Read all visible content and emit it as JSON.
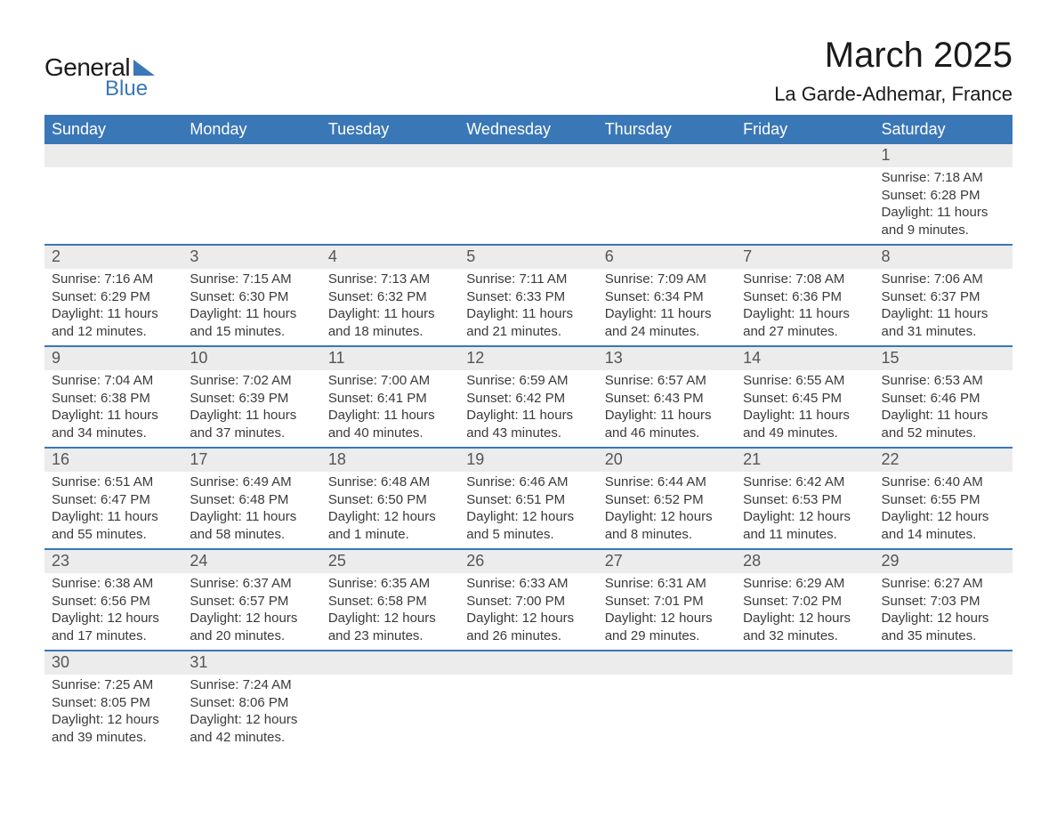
{
  "brand": {
    "general": "General",
    "blue": "Blue",
    "accent_color": "#3a77b7"
  },
  "title": {
    "month": "March 2025",
    "location": "La Garde-Adhemar, France"
  },
  "calendar": {
    "header_bg": "#3a77b7",
    "header_fg": "#ffffff",
    "band_bg": "#ececec",
    "band_fg": "#555555",
    "body_fg": "#3a3a3a",
    "row_border_color": "#3a77b7",
    "font_family": "Arial",
    "header_fontsize": 18,
    "daynum_fontsize": 18,
    "body_fontsize": 15,
    "day_headers": [
      "Sunday",
      "Monday",
      "Tuesday",
      "Wednesday",
      "Thursday",
      "Friday",
      "Saturday"
    ],
    "weeks": [
      [
        null,
        null,
        null,
        null,
        null,
        null,
        {
          "n": "1",
          "sunrise": "7:18 AM",
          "sunset": "6:28 PM",
          "daylight": "11 hours and 9 minutes."
        }
      ],
      [
        {
          "n": "2",
          "sunrise": "7:16 AM",
          "sunset": "6:29 PM",
          "daylight": "11 hours and 12 minutes."
        },
        {
          "n": "3",
          "sunrise": "7:15 AM",
          "sunset": "6:30 PM",
          "daylight": "11 hours and 15 minutes."
        },
        {
          "n": "4",
          "sunrise": "7:13 AM",
          "sunset": "6:32 PM",
          "daylight": "11 hours and 18 minutes."
        },
        {
          "n": "5",
          "sunrise": "7:11 AM",
          "sunset": "6:33 PM",
          "daylight": "11 hours and 21 minutes."
        },
        {
          "n": "6",
          "sunrise": "7:09 AM",
          "sunset": "6:34 PM",
          "daylight": "11 hours and 24 minutes."
        },
        {
          "n": "7",
          "sunrise": "7:08 AM",
          "sunset": "6:36 PM",
          "daylight": "11 hours and 27 minutes."
        },
        {
          "n": "8",
          "sunrise": "7:06 AM",
          "sunset": "6:37 PM",
          "daylight": "11 hours and 31 minutes."
        }
      ],
      [
        {
          "n": "9",
          "sunrise": "7:04 AM",
          "sunset": "6:38 PM",
          "daylight": "11 hours and 34 minutes."
        },
        {
          "n": "10",
          "sunrise": "7:02 AM",
          "sunset": "6:39 PM",
          "daylight": "11 hours and 37 minutes."
        },
        {
          "n": "11",
          "sunrise": "7:00 AM",
          "sunset": "6:41 PM",
          "daylight": "11 hours and 40 minutes."
        },
        {
          "n": "12",
          "sunrise": "6:59 AM",
          "sunset": "6:42 PM",
          "daylight": "11 hours and 43 minutes."
        },
        {
          "n": "13",
          "sunrise": "6:57 AM",
          "sunset": "6:43 PM",
          "daylight": "11 hours and 46 minutes."
        },
        {
          "n": "14",
          "sunrise": "6:55 AM",
          "sunset": "6:45 PM",
          "daylight": "11 hours and 49 minutes."
        },
        {
          "n": "15",
          "sunrise": "6:53 AM",
          "sunset": "6:46 PM",
          "daylight": "11 hours and 52 minutes."
        }
      ],
      [
        {
          "n": "16",
          "sunrise": "6:51 AM",
          "sunset": "6:47 PM",
          "daylight": "11 hours and 55 minutes."
        },
        {
          "n": "17",
          "sunrise": "6:49 AM",
          "sunset": "6:48 PM",
          "daylight": "11 hours and 58 minutes."
        },
        {
          "n": "18",
          "sunrise": "6:48 AM",
          "sunset": "6:50 PM",
          "daylight": "12 hours and 1 minute."
        },
        {
          "n": "19",
          "sunrise": "6:46 AM",
          "sunset": "6:51 PM",
          "daylight": "12 hours and 5 minutes."
        },
        {
          "n": "20",
          "sunrise": "6:44 AM",
          "sunset": "6:52 PM",
          "daylight": "12 hours and 8 minutes."
        },
        {
          "n": "21",
          "sunrise": "6:42 AM",
          "sunset": "6:53 PM",
          "daylight": "12 hours and 11 minutes."
        },
        {
          "n": "22",
          "sunrise": "6:40 AM",
          "sunset": "6:55 PM",
          "daylight": "12 hours and 14 minutes."
        }
      ],
      [
        {
          "n": "23",
          "sunrise": "6:38 AM",
          "sunset": "6:56 PM",
          "daylight": "12 hours and 17 minutes."
        },
        {
          "n": "24",
          "sunrise": "6:37 AM",
          "sunset": "6:57 PM",
          "daylight": "12 hours and 20 minutes."
        },
        {
          "n": "25",
          "sunrise": "6:35 AM",
          "sunset": "6:58 PM",
          "daylight": "12 hours and 23 minutes."
        },
        {
          "n": "26",
          "sunrise": "6:33 AM",
          "sunset": "7:00 PM",
          "daylight": "12 hours and 26 minutes."
        },
        {
          "n": "27",
          "sunrise": "6:31 AM",
          "sunset": "7:01 PM",
          "daylight": "12 hours and 29 minutes."
        },
        {
          "n": "28",
          "sunrise": "6:29 AM",
          "sunset": "7:02 PM",
          "daylight": "12 hours and 32 minutes."
        },
        {
          "n": "29",
          "sunrise": "6:27 AM",
          "sunset": "7:03 PM",
          "daylight": "12 hours and 35 minutes."
        }
      ],
      [
        {
          "n": "30",
          "sunrise": "7:25 AM",
          "sunset": "8:05 PM",
          "daylight": "12 hours and 39 minutes."
        },
        {
          "n": "31",
          "sunrise": "7:24 AM",
          "sunset": "8:06 PM",
          "daylight": "12 hours and 42 minutes."
        },
        null,
        null,
        null,
        null,
        null
      ]
    ],
    "labels": {
      "sunrise": "Sunrise: ",
      "sunset": "Sunset: ",
      "daylight": "Daylight: "
    }
  }
}
